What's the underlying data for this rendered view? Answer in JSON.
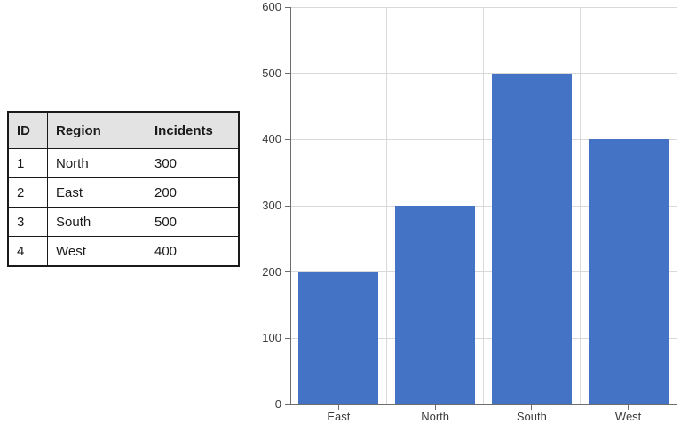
{
  "table": {
    "headers": [
      "ID",
      "Region",
      "Incidents"
    ],
    "rows": [
      {
        "id": "1",
        "region": "North",
        "incidents": "300"
      },
      {
        "id": "2",
        "region": "East",
        "incidents": "200"
      },
      {
        "id": "3",
        "region": "South",
        "incidents": "500"
      },
      {
        "id": "4",
        "region": "West",
        "incidents": "400"
      }
    ],
    "header_bg": "#e3e3e3"
  },
  "chart_data": {
    "type": "bar",
    "categories": [
      "East",
      "North",
      "South",
      "West"
    ],
    "values": [
      200,
      300,
      500,
      400
    ],
    "title": "",
    "xlabel": "",
    "ylabel": "",
    "ylim": [
      0,
      600
    ],
    "ytick_interval": 100,
    "yticks": [
      0,
      100,
      200,
      300,
      400,
      500,
      600
    ],
    "bar_color": "#4472c4",
    "gridline_color": "#d9d9d9",
    "axis_color": "#6e6e6e",
    "label_color": "#3b3b3b",
    "grid": "both",
    "legend": "none"
  }
}
